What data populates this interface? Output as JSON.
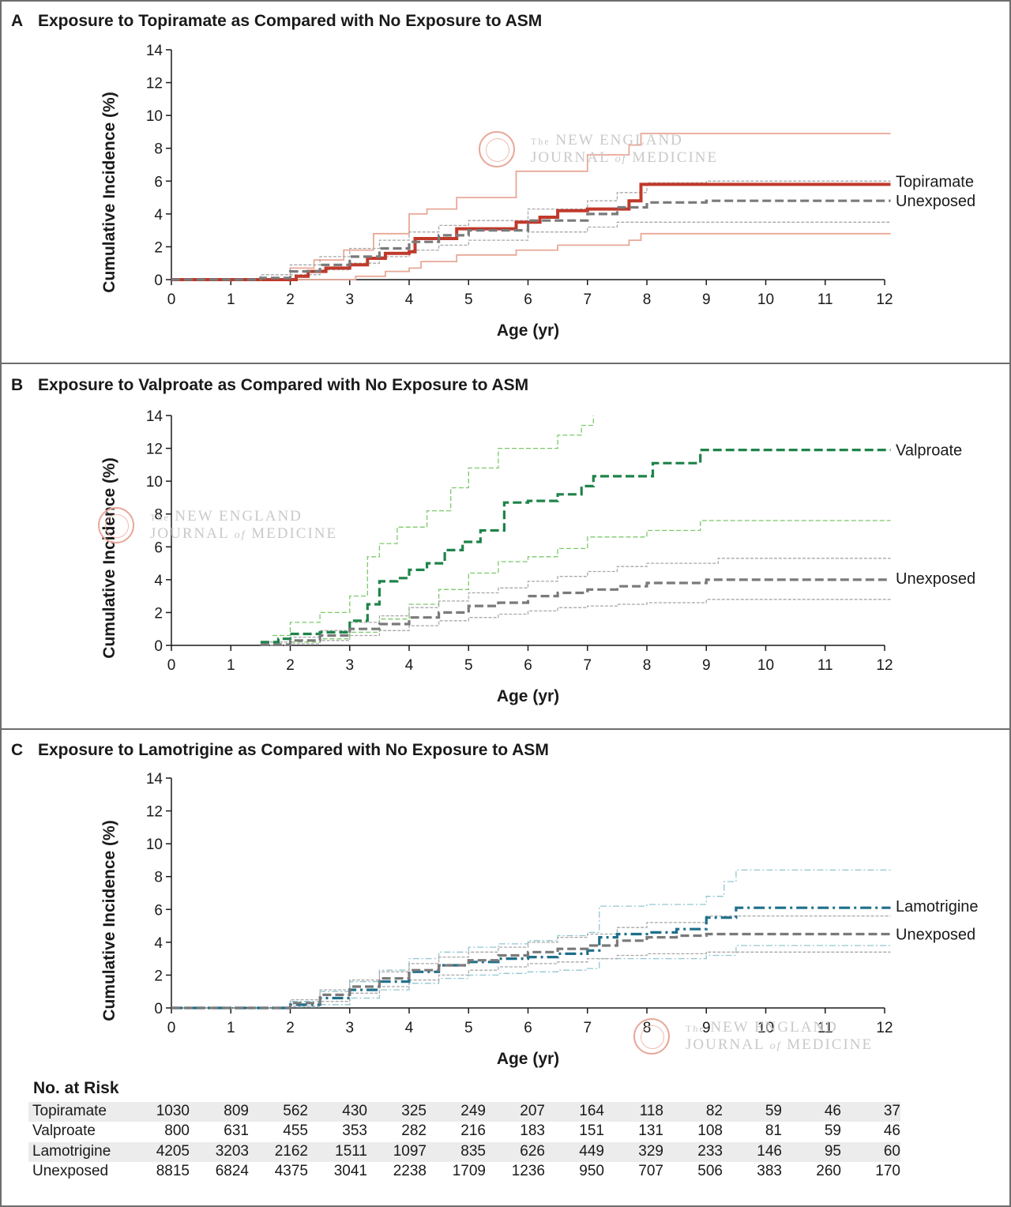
{
  "panels": [
    {
      "letter": "A",
      "title": "Exposure to Topiramate as Compared with No Exposure to ASM"
    },
    {
      "letter": "B",
      "title": "Exposure to Valproate as Compared with No Exposure to ASM"
    },
    {
      "letter": "C",
      "title": "Exposure to Lamotrigine as Compared with No Exposure to ASM"
    }
  ],
  "watermark": {
    "line1_prefix": "The",
    "line1": "NEW ENGLAND",
    "line2a": "JOURNAL",
    "line2b": "of",
    "line2c": "MEDICINE"
  },
  "chart_data": [
    {
      "type": "line",
      "title": "Exposure to Topiramate as Compared with No Exposure to ASM",
      "xlabel": "Age (yr)",
      "ylabel": "Cumulative Incidence (%)",
      "xlim": [
        0,
        12
      ],
      "ylim": [
        0,
        14
      ],
      "xticks": [
        "0",
        "1",
        "2",
        "3",
        "4",
        "5",
        "6",
        "7",
        "8",
        "9",
        "10",
        "11",
        "12"
      ],
      "yticks": [
        "0",
        "2",
        "4",
        "6",
        "8",
        "10",
        "12",
        "14"
      ],
      "legend_position": "end-of-line labels (right)",
      "series": [
        {
          "name": "Topiramate",
          "role": "estimate",
          "style": "solid",
          "color": "#c0392b",
          "x": [
            0,
            2.1,
            2.3,
            2.6,
            3.0,
            3.3,
            3.6,
            4.0,
            4.1,
            4.8,
            5.3,
            5.8,
            6.2,
            6.5,
            7.0,
            7.7,
            7.9,
            12.1
          ],
          "y": [
            0,
            0.2,
            0.5,
            0.7,
            0.9,
            1.3,
            1.6,
            1.7,
            2.5,
            3.1,
            3.1,
            3.5,
            3.8,
            4.2,
            4.3,
            4.8,
            5.8,
            5.8
          ]
        },
        {
          "name": "",
          "role": "ci-upper",
          "style": "thin",
          "color": "#e8a896",
          "x": [
            0,
            2.0,
            2.4,
            2.9,
            3.4,
            4.0,
            4.3,
            4.8,
            5.8,
            7.0,
            7.7,
            7.9,
            12.1
          ],
          "y": [
            0,
            0.7,
            1.2,
            1.8,
            2.8,
            4.0,
            4.3,
            5.0,
            6.6,
            7.6,
            8.2,
            8.9,
            8.9
          ]
        },
        {
          "name": "",
          "role": "ci-lower",
          "style": "thin",
          "color": "#e8a896",
          "x": [
            0,
            3.1,
            3.6,
            4.0,
            4.2,
            4.8,
            5.8,
            6.5,
            7.7,
            7.9,
            12.1
          ],
          "y": [
            0,
            0.2,
            0.5,
            0.7,
            1.1,
            1.5,
            1.8,
            2.1,
            2.4,
            2.8,
            2.8
          ]
        },
        {
          "name": "Unexposed",
          "role": "estimate",
          "style": "dashed",
          "color": "#7a7a7a",
          "x": [
            0,
            1.5,
            2.0,
            2.5,
            3.0,
            3.5,
            4.0,
            4.5,
            5.0,
            6.0,
            7.0,
            7.5,
            8.0,
            9.0,
            10.0,
            12.1
          ],
          "y": [
            0,
            0.1,
            0.5,
            0.9,
            1.4,
            1.9,
            2.3,
            2.7,
            3.0,
            3.6,
            4.0,
            4.4,
            4.7,
            4.8,
            4.8,
            4.8
          ]
        },
        {
          "name": "",
          "role": "ci-upper",
          "style": "dotted",
          "color": "#a8a8a8",
          "x": [
            0,
            1.5,
            2.0,
            2.5,
            3.0,
            3.5,
            4.0,
            4.5,
            5.0,
            6.0,
            7.0,
            7.5,
            8.0,
            9.0,
            12.1
          ],
          "y": [
            0,
            0.3,
            0.9,
            1.4,
            1.9,
            2.4,
            2.9,
            3.3,
            3.6,
            4.3,
            4.8,
            5.3,
            5.9,
            6.0,
            6.0
          ]
        },
        {
          "name": "",
          "role": "ci-lower",
          "style": "dotted",
          "color": "#a8a8a8",
          "x": [
            0,
            1.5,
            2.0,
            2.5,
            3.0,
            3.5,
            4.0,
            4.5,
            5.0,
            6.0,
            7.0,
            7.5,
            8.0,
            9.0,
            12.1
          ],
          "y": [
            0,
            0.05,
            0.3,
            0.6,
            1.0,
            1.4,
            1.8,
            2.1,
            2.4,
            2.9,
            3.2,
            3.5,
            3.5,
            3.5,
            3.5
          ]
        }
      ],
      "line_labels": [
        {
          "text": "Topiramate",
          "y": 6.0
        },
        {
          "text": "Unexposed",
          "y": 4.8
        }
      ]
    },
    {
      "type": "line",
      "title": "Exposure to Valproate as Compared with No Exposure to ASM",
      "xlabel": "Age (yr)",
      "ylabel": "Cumulative Incidence (%)",
      "xlim": [
        0,
        12
      ],
      "ylim": [
        0,
        14
      ],
      "xticks": [
        "0",
        "1",
        "2",
        "3",
        "4",
        "5",
        "6",
        "7",
        "8",
        "9",
        "10",
        "11",
        "12"
      ],
      "yticks": [
        "0",
        "2",
        "4",
        "6",
        "8",
        "10",
        "12",
        "14"
      ],
      "legend_position": "end-of-line labels (right)",
      "series": [
        {
          "name": "Valproate",
          "role": "estimate",
          "style": "dashed",
          "color": "#1e8449",
          "x": [
            1.5,
            1.8,
            2.0,
            2.5,
            3.0,
            3.3,
            3.5,
            3.8,
            4.0,
            4.3,
            4.6,
            4.9,
            5.2,
            5.6,
            6.0,
            6.5,
            6.9,
            7.1,
            7.7,
            8.1,
            8.9,
            9.0,
            12.1
          ],
          "y": [
            0.2,
            0.4,
            0.7,
            0.8,
            1.5,
            2.5,
            3.9,
            4.1,
            4.6,
            5.0,
            5.8,
            6.3,
            7.0,
            8.7,
            8.8,
            9.2,
            9.7,
            10.3,
            10.3,
            11.1,
            11.9,
            11.9,
            11.9
          ]
        },
        {
          "name": "",
          "role": "ci-upper",
          "style": "thin-dashed",
          "color": "#7dc86a",
          "x": [
            1.7,
            2.0,
            2.5,
            3.0,
            3.3,
            3.5,
            3.8,
            4.3,
            4.7,
            5.0,
            5.5,
            6.0,
            6.5,
            6.9,
            7.1
          ],
          "y": [
            0.6,
            1.4,
            2.0,
            3.0,
            5.4,
            6.2,
            7.2,
            8.2,
            9.6,
            10.8,
            12.0,
            12.0,
            12.8,
            13.4,
            14.0
          ]
        },
        {
          "name": "",
          "role": "ci-lower",
          "style": "thin-dashed",
          "color": "#7dc86a",
          "x": [
            2.0,
            2.5,
            3.0,
            3.5,
            4.0,
            4.5,
            5.0,
            5.5,
            6.0,
            6.5,
            7.0,
            7.5,
            8.0,
            8.9,
            9.0,
            12.1
          ],
          "y": [
            0.2,
            0.4,
            0.8,
            1.6,
            2.5,
            3.4,
            4.4,
            5.1,
            5.4,
            5.9,
            6.6,
            6.6,
            7.0,
            7.6,
            7.6,
            7.6
          ]
        },
        {
          "name": "Unexposed",
          "role": "estimate",
          "style": "dashed",
          "color": "#7a7a7a",
          "x": [
            1.5,
            2.0,
            2.5,
            3.0,
            3.5,
            4.0,
            4.5,
            5.0,
            5.5,
            6.0,
            6.5,
            7.0,
            7.5,
            8.0,
            9.0,
            10.0,
            12.1
          ],
          "y": [
            0.05,
            0.3,
            0.6,
            1.0,
            1.3,
            1.7,
            2.0,
            2.4,
            2.6,
            3.0,
            3.2,
            3.4,
            3.6,
            3.8,
            4.0,
            4.0,
            4.0
          ]
        },
        {
          "name": "",
          "role": "ci-upper",
          "style": "dotted",
          "color": "#a8a8a8",
          "x": [
            1.5,
            2.0,
            2.5,
            3.0,
            3.5,
            4.0,
            4.5,
            5.0,
            5.5,
            6.0,
            6.5,
            7.0,
            7.5,
            8.0,
            9.0,
            9.2,
            12.1
          ],
          "y": [
            0.2,
            0.5,
            0.9,
            1.4,
            1.8,
            2.3,
            2.7,
            3.2,
            3.5,
            3.9,
            4.2,
            4.5,
            4.8,
            5.0,
            5.0,
            5.3,
            5.3
          ]
        },
        {
          "name": "",
          "role": "ci-lower",
          "style": "dotted",
          "color": "#a8a8a8",
          "x": [
            1.5,
            2.0,
            2.5,
            3.0,
            3.5,
            4.0,
            4.5,
            5.0,
            5.5,
            6.0,
            6.5,
            7.0,
            7.5,
            8.0,
            9.0,
            12.1
          ],
          "y": [
            0,
            0.1,
            0.3,
            0.6,
            0.9,
            1.2,
            1.5,
            1.7,
            1.9,
            2.1,
            2.3,
            2.4,
            2.5,
            2.6,
            2.8,
            2.8
          ]
        }
      ],
      "line_labels": [
        {
          "text": "Valproate",
          "y": 11.9
        },
        {
          "text": "Unexposed",
          "y": 4.1
        }
      ]
    },
    {
      "type": "line",
      "title": "Exposure to Lamotrigine as Compared with No Exposure to ASM",
      "xlabel": "Age (yr)",
      "ylabel": "Cumulative Incidence (%)",
      "xlim": [
        0,
        12
      ],
      "ylim": [
        0,
        14
      ],
      "xticks": [
        "0",
        "1",
        "2",
        "3",
        "4",
        "5",
        "6",
        "7",
        "8",
        "9",
        "10",
        "11",
        "12"
      ],
      "yticks": [
        "0",
        "2",
        "4",
        "6",
        "8",
        "10",
        "12",
        "14"
      ],
      "legend_position": "end-of-line labels (right)",
      "series": [
        {
          "name": "Lamotrigine",
          "role": "estimate",
          "style": "dash-dot",
          "color": "#1f6f8b",
          "x": [
            0,
            1.5,
            2.0,
            2.5,
            3.0,
            3.5,
            4.0,
            4.5,
            5.0,
            5.5,
            6.0,
            6.5,
            7.0,
            7.2,
            7.5,
            8.0,
            8.5,
            9.0,
            9.5,
            12.1
          ],
          "y": [
            0,
            0,
            0.2,
            0.6,
            1.1,
            1.6,
            2.2,
            2.6,
            2.8,
            3.0,
            3.1,
            3.3,
            3.5,
            4.3,
            4.5,
            4.6,
            4.8,
            5.5,
            6.1,
            6.1
          ]
        },
        {
          "name": "",
          "role": "ci-upper",
          "style": "thin-dash-dot",
          "color": "#93c5d1",
          "x": [
            0,
            1.5,
            2.0,
            2.5,
            3.0,
            3.5,
            4.0,
            4.5,
            5.0,
            5.5,
            6.0,
            6.5,
            7.0,
            7.2,
            8.0,
            9.0,
            9.3,
            9.5,
            12.1
          ],
          "y": [
            0,
            0,
            0.4,
            1.0,
            1.6,
            2.3,
            3.0,
            3.4,
            3.7,
            3.9,
            4.1,
            4.4,
            4.6,
            6.2,
            6.3,
            6.8,
            7.7,
            8.4,
            8.4
          ]
        },
        {
          "name": "",
          "role": "ci-lower",
          "style": "thin-dash-dot",
          "color": "#93c5d1",
          "x": [
            0,
            1.5,
            2.0,
            2.5,
            3.0,
            3.5,
            4.0,
            4.5,
            5.0,
            5.5,
            6.0,
            6.5,
            7.0,
            7.2,
            8.0,
            9.0,
            9.5,
            12.1
          ],
          "y": [
            0,
            0,
            0.05,
            0.2,
            0.6,
            1.1,
            1.5,
            1.8,
            2.0,
            2.1,
            2.2,
            2.3,
            2.4,
            3.0,
            3.0,
            3.2,
            3.8,
            3.8
          ]
        },
        {
          "name": "Unexposed",
          "role": "estimate",
          "style": "dashed",
          "color": "#7a7a7a",
          "x": [
            0,
            1.5,
            2.0,
            2.5,
            3.0,
            3.5,
            4.0,
            4.5,
            5.0,
            5.5,
            6.0,
            6.5,
            7.0,
            7.5,
            8.0,
            8.5,
            9.0,
            12.1
          ],
          "y": [
            0,
            0,
            0.3,
            0.8,
            1.3,
            1.8,
            2.3,
            2.6,
            2.9,
            3.2,
            3.4,
            3.6,
            3.8,
            4.1,
            4.3,
            4.4,
            4.5,
            4.5
          ]
        },
        {
          "name": "",
          "role": "ci-upper",
          "style": "dotted",
          "color": "#a8a8a8",
          "x": [
            0,
            1.5,
            2.0,
            2.5,
            3.0,
            3.5,
            4.0,
            4.5,
            5.0,
            5.5,
            6.0,
            6.5,
            7.0,
            7.5,
            8.0,
            9.0,
            12.1
          ],
          "y": [
            0,
            0,
            0.5,
            1.1,
            1.7,
            2.2,
            2.7,
            3.1,
            3.4,
            3.7,
            4.0,
            4.3,
            4.5,
            4.9,
            5.2,
            5.6,
            5.6
          ]
        },
        {
          "name": "",
          "role": "ci-lower",
          "style": "dotted",
          "color": "#a8a8a8",
          "x": [
            0,
            1.5,
            2.0,
            2.5,
            3.0,
            3.5,
            4.0,
            4.5,
            5.0,
            5.5,
            6.0,
            6.5,
            7.0,
            7.5,
            8.0,
            9.0,
            12.1
          ],
          "y": [
            0,
            0,
            0.1,
            0.4,
            0.9,
            1.3,
            1.7,
            2.0,
            2.3,
            2.5,
            2.7,
            2.8,
            3.0,
            3.2,
            3.3,
            3.4,
            3.4
          ]
        }
      ],
      "line_labels": [
        {
          "text": "Lamotrigine",
          "y": 6.2
        },
        {
          "text": "Unexposed",
          "y": 4.5
        }
      ]
    }
  ],
  "risk_table": {
    "heading": "No. at Risk",
    "rows": [
      {
        "label": "Topiramate",
        "values": [
          "1030",
          "809",
          "562",
          "430",
          "325",
          "249",
          "207",
          "164",
          "118",
          "82",
          "59",
          "46",
          "37"
        ]
      },
      {
        "label": "Valproate",
        "values": [
          "800",
          "631",
          "455",
          "353",
          "282",
          "216",
          "183",
          "151",
          "131",
          "108",
          "81",
          "59",
          "46"
        ]
      },
      {
        "label": "Lamotrigine",
        "values": [
          "4205",
          "3203",
          "2162",
          "1511",
          "1097",
          "835",
          "626",
          "449",
          "329",
          "233",
          "146",
          "95",
          "60"
        ]
      },
      {
        "label": "Unexposed",
        "values": [
          "8815",
          "6824",
          "4375",
          "3041",
          "2238",
          "1709",
          "1236",
          "950",
          "707",
          "506",
          "383",
          "260",
          "170"
        ]
      }
    ]
  }
}
